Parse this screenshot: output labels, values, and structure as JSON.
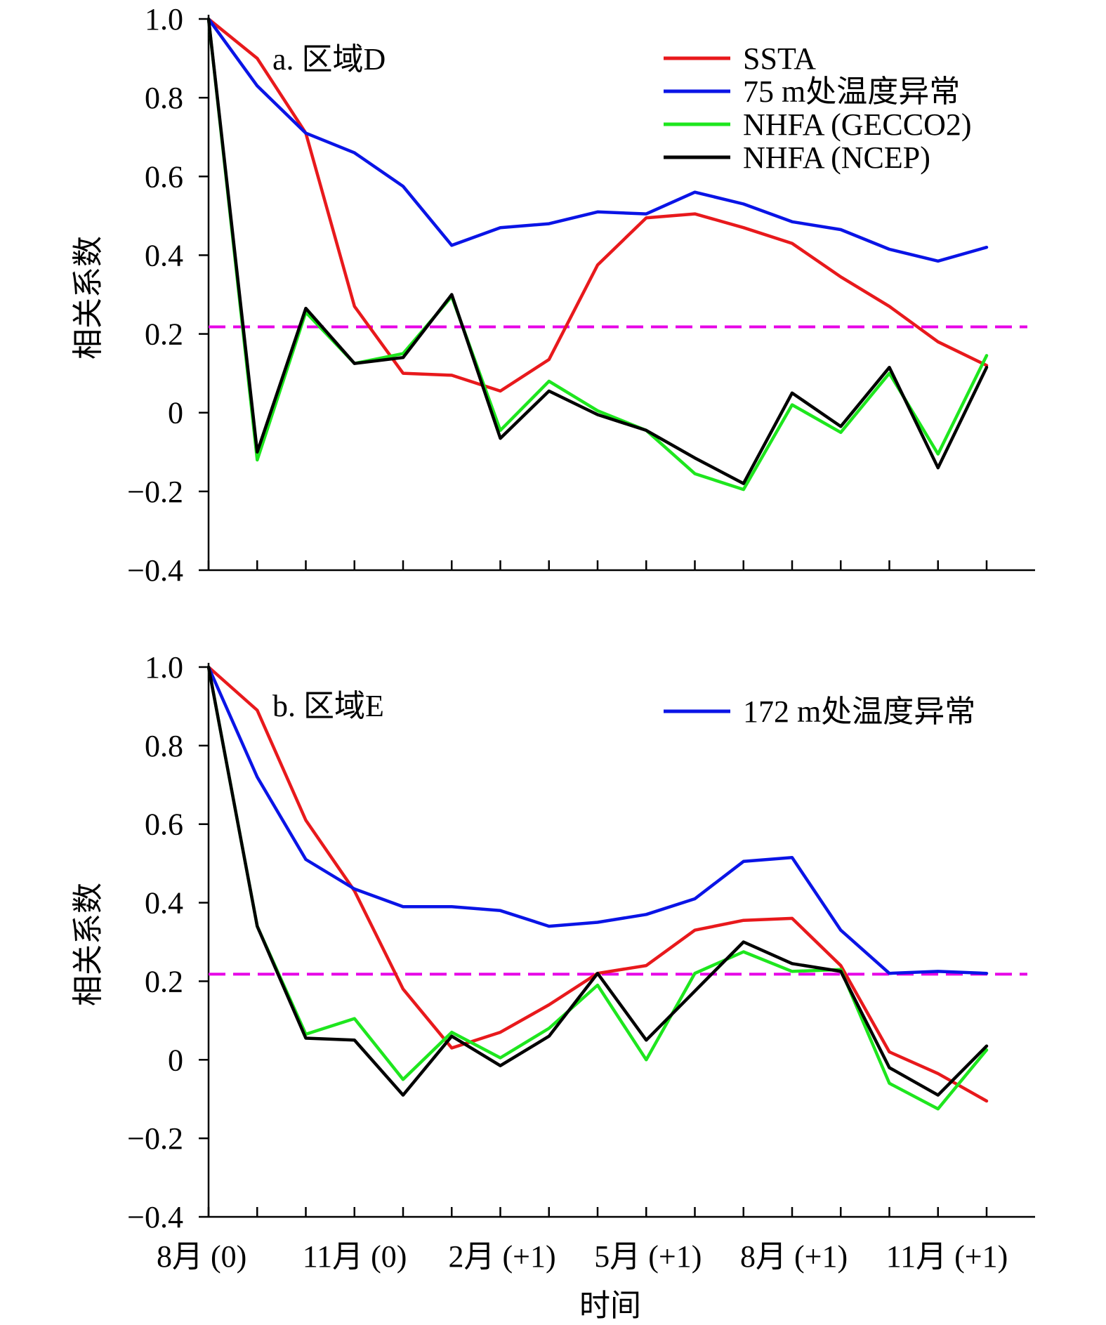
{
  "x_axis_title": "时间",
  "x_categories": [
    "8月 (0)",
    "11月 (0)",
    "2月 (+1)",
    "5月 (+1)",
    "8月 (+1)",
    "11月 (+1)"
  ],
  "threshold_color": "#e600e6",
  "chart_data": [
    {
      "type": "line",
      "panel_label": "a. 区域D",
      "ylabel": "相关系数",
      "ylim": [
        -0.4,
        1.0
      ],
      "yticks": [
        -0.4,
        -0.2,
        0,
        0.2,
        0.4,
        0.6,
        0.8,
        1.0
      ],
      "ytick_labels": [
        "−0.4",
        "−0.2",
        "0",
        "0.2",
        "0.4",
        "0.6",
        "0.8",
        "1.0"
      ],
      "x": [
        0,
        1,
        2,
        3,
        4,
        5,
        6,
        7,
        8,
        9,
        10,
        11,
        12,
        13,
        14,
        15,
        16
      ],
      "threshold": 0.218,
      "legend_position": "top-right",
      "series": [
        {
          "name": "SSTA",
          "color": "#e8191c",
          "values": [
            1.0,
            0.9,
            0.71,
            0.27,
            0.1,
            0.095,
            0.055,
            0.135,
            0.375,
            0.495,
            0.505,
            0.47,
            0.43,
            0.345,
            0.27,
            0.18,
            0.12
          ]
        },
        {
          "name": "75 m处温度异常",
          "color": "#0a14e6",
          "values": [
            1.0,
            0.83,
            0.71,
            0.66,
            0.575,
            0.425,
            0.47,
            0.48,
            0.51,
            0.505,
            0.56,
            0.53,
            0.485,
            0.465,
            0.415,
            0.385,
            0.42
          ]
        },
        {
          "name": "NHFA (GECCO2)",
          "color": "#1ee61e",
          "values": [
            1.0,
            -0.12,
            0.255,
            0.125,
            0.15,
            0.295,
            -0.045,
            0.08,
            0.005,
            -0.045,
            -0.155,
            -0.195,
            0.02,
            -0.05,
            0.1,
            -0.105,
            0.145
          ]
        },
        {
          "name": "NHFA (NCEP)",
          "color": "#000000",
          "values": [
            1.0,
            -0.1,
            0.265,
            0.125,
            0.14,
            0.3,
            -0.065,
            0.055,
            -0.005,
            -0.045,
            -0.115,
            -0.18,
            0.05,
            -0.035,
            0.115,
            -0.14,
            0.115
          ]
        }
      ]
    },
    {
      "type": "line",
      "panel_label": "b. 区域E",
      "ylabel": "相关系数",
      "ylim": [
        -0.4,
        1.0
      ],
      "yticks": [
        -0.4,
        -0.2,
        0,
        0.2,
        0.4,
        0.6,
        0.8,
        1.0
      ],
      "ytick_labels": [
        "−0.4",
        "−0.2",
        "0",
        "0.2",
        "0.4",
        "0.6",
        "0.8",
        "1.0"
      ],
      "x": [
        0,
        1,
        2,
        3,
        4,
        5,
        6,
        7,
        8,
        9,
        10,
        11,
        12,
        13,
        14,
        15,
        16
      ],
      "threshold": 0.218,
      "legend_position": "top-right",
      "series": [
        {
          "color": "#e8191c",
          "values": [
            1.0,
            0.89,
            0.61,
            0.43,
            0.18,
            0.03,
            0.07,
            0.14,
            0.22,
            0.24,
            0.33,
            0.355,
            0.36,
            0.24,
            0.02,
            -0.035,
            -0.105
          ]
        },
        {
          "name": "172 m处温度异常",
          "color": "#0a14e6",
          "values": [
            1.0,
            0.72,
            0.51,
            0.435,
            0.39,
            0.39,
            0.38,
            0.34,
            0.35,
            0.37,
            0.41,
            0.505,
            0.515,
            0.33,
            0.22,
            0.225,
            0.22
          ]
        },
        {
          "color": "#1ee61e",
          "values": [
            1.0,
            0.34,
            0.065,
            0.105,
            -0.05,
            0.07,
            0.005,
            0.08,
            0.19,
            0.0,
            0.22,
            0.275,
            0.225,
            0.23,
            -0.06,
            -0.125,
            0.025
          ]
        },
        {
          "color": "#000000",
          "values": [
            1.0,
            0.34,
            0.055,
            0.05,
            -0.09,
            0.06,
            -0.015,
            0.06,
            0.22,
            0.05,
            0.175,
            0.3,
            0.245,
            0.225,
            -0.02,
            -0.09,
            0.035
          ]
        }
      ]
    }
  ]
}
